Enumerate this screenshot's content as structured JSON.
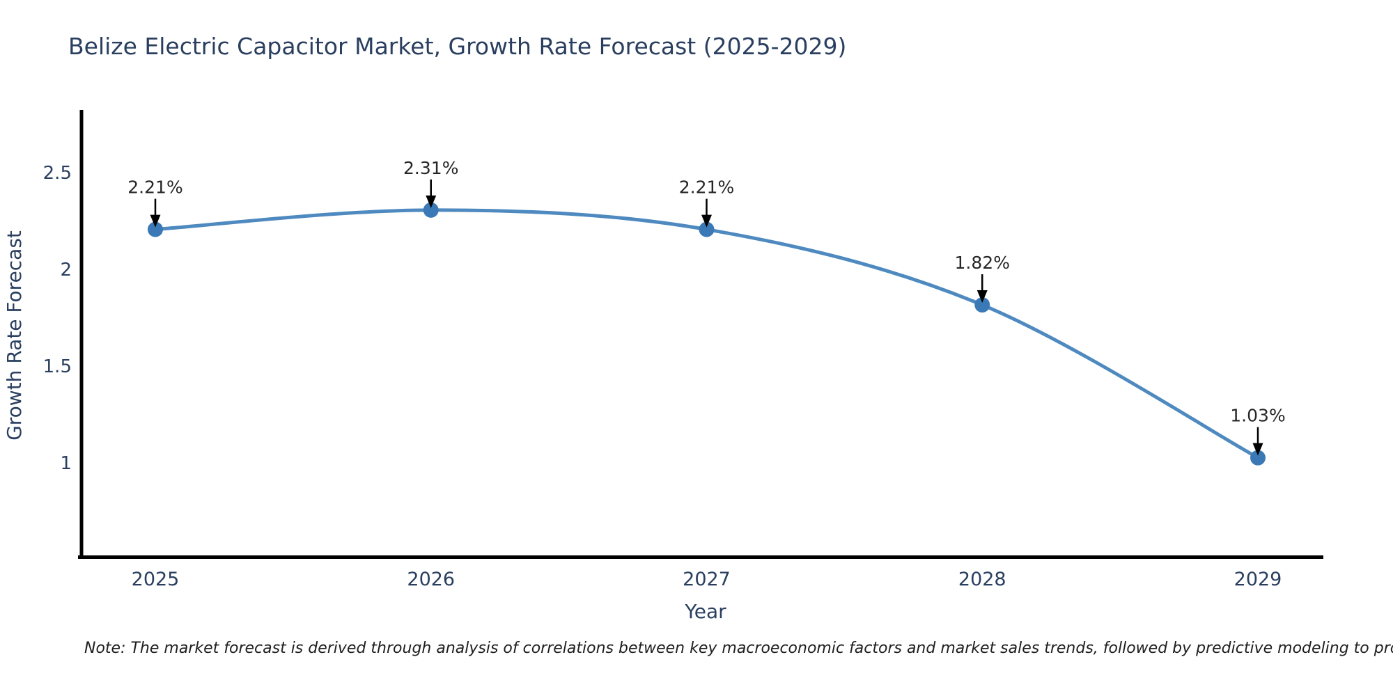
{
  "title": "Belize Electric Capacitor Market, Growth Rate Forecast (2025-2029)",
  "note": "Note: The market forecast is derived through analysis of correlations between key macroeconomic factors and market sales trends, followed by predictive modeling to project future sales",
  "chart_data": {
    "type": "line",
    "title": "Belize Electric Capacitor Market, Growth Rate Forecast (2025-2029)",
    "x": [
      2025,
      2026,
      2027,
      2028,
      2029
    ],
    "series": [
      {
        "name": "Growth Rate Forecast",
        "values": [
          2.21,
          2.31,
          2.21,
          1.82,
          1.03
        ]
      }
    ],
    "point_labels": [
      "2.21%",
      "2.31%",
      "2.21%",
      "1.82%",
      "1.03%"
    ],
    "xlabel": "Year",
    "ylabel": "Growth Rate Forecast",
    "xtick_labels": [
      "2025",
      "2026",
      "2027",
      "2028",
      "2029"
    ],
    "ytick_values": [
      1,
      1.5,
      2,
      2.5
    ],
    "ytick_labels": [
      "1",
      "1.5",
      "2",
      "2.5"
    ],
    "ylim": [
      0.52,
      2.83
    ],
    "grid": false,
    "legend": "none",
    "line_shape": "spline",
    "marker_style": "circle",
    "annotation_style": "value label above point with black down-arrow",
    "colors": {
      "line": "#4e8ac0",
      "marker": "#3a79b6",
      "annotation_arrow": "#000000",
      "annotation_text": "#262626",
      "axis_text": "#2a3f5f",
      "spine": "#000000",
      "title": "#2a3f5f",
      "background": "#ffffff"
    }
  }
}
